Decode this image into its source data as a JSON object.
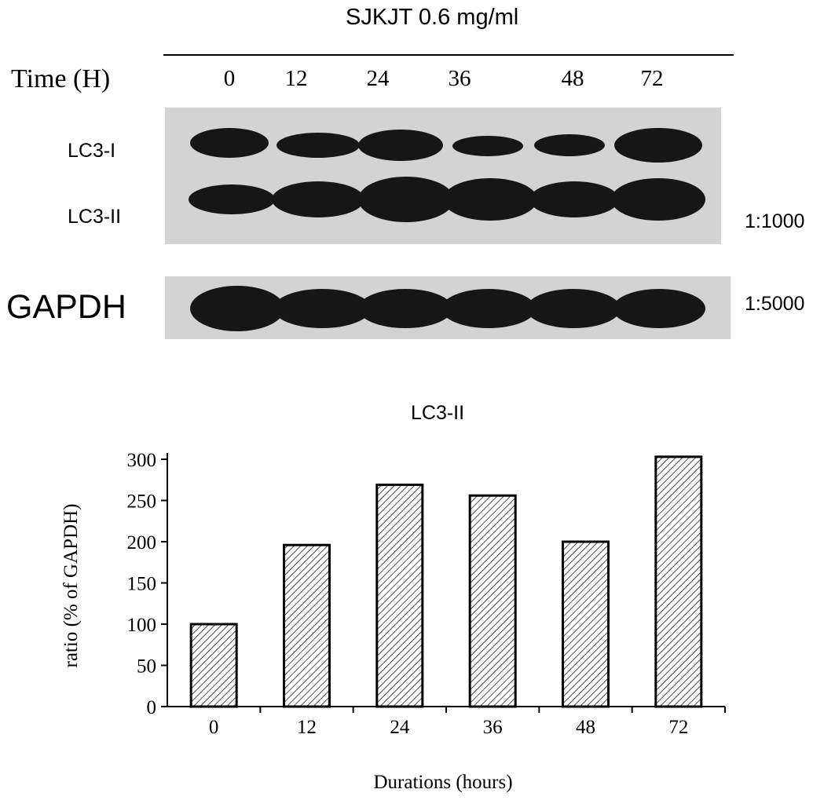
{
  "blot": {
    "treatment_label": "SJKJT 0.6 mg/ml",
    "time_label": "Time (H)",
    "lanes": [
      "0",
      "12",
      "24",
      "36",
      "48",
      "72"
    ],
    "band_labels": {
      "lc3_i": "LC3-I",
      "lc3_ii": "LC3-II",
      "gapdh": "GAPDH"
    },
    "dilutions": {
      "lc3": "1:1000",
      "gapdh": "1:5000"
    },
    "band_intensity": {
      "lc3_i": [
        0.85,
        0.75,
        0.9,
        0.6,
        0.65,
        0.95
      ],
      "lc3_ii": [
        0.8,
        0.95,
        1.0,
        1.0,
        0.95,
        1.0
      ],
      "gapdh": [
        1.0,
        0.95,
        0.95,
        0.95,
        0.95,
        0.95
      ]
    }
  },
  "chart_data": {
    "type": "bar",
    "title": "LC3-II",
    "xlabel": "Durations (hours)",
    "ylabel": "ratio (% of GAPDH)",
    "categories": [
      "0",
      "12",
      "24",
      "36",
      "48",
      "72"
    ],
    "values": [
      100,
      196,
      269,
      256,
      200,
      303
    ],
    "ylim": [
      0,
      300
    ],
    "yticks": [
      0,
      50,
      100,
      150,
      200,
      250,
      300
    ],
    "grid": false,
    "legend": "none",
    "bar_fill": "hatched",
    "bar_color": "#000000"
  }
}
